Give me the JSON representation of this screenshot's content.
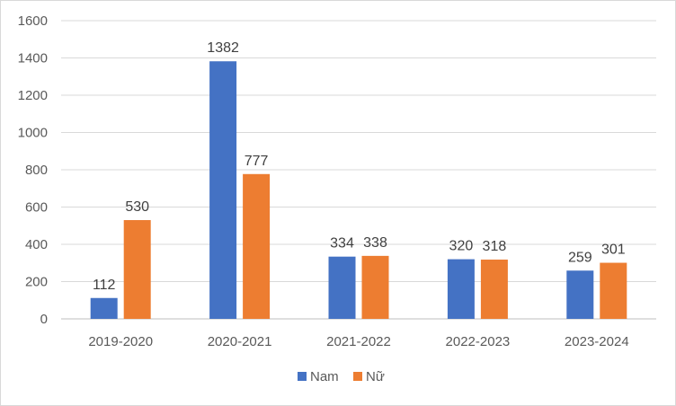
{
  "chart_data": {
    "type": "bar",
    "categories": [
      "2019-2020",
      "2020-2021",
      "2021-2022",
      "2022-2023",
      "2023-2024"
    ],
    "series": [
      {
        "name": "Nam",
        "values": [
          112,
          1382,
          334,
          320,
          259
        ],
        "color": "#4472c4"
      },
      {
        "name": "Nữ",
        "values": [
          530,
          777,
          338,
          318,
          301
        ],
        "color": "#ed7d31"
      }
    ],
    "ylim": [
      0,
      1600
    ],
    "yticks": [
      0,
      200,
      400,
      600,
      800,
      1000,
      1200,
      1400,
      1600
    ],
    "grid": true,
    "legend_position": "bottom",
    "data_labels": true
  }
}
